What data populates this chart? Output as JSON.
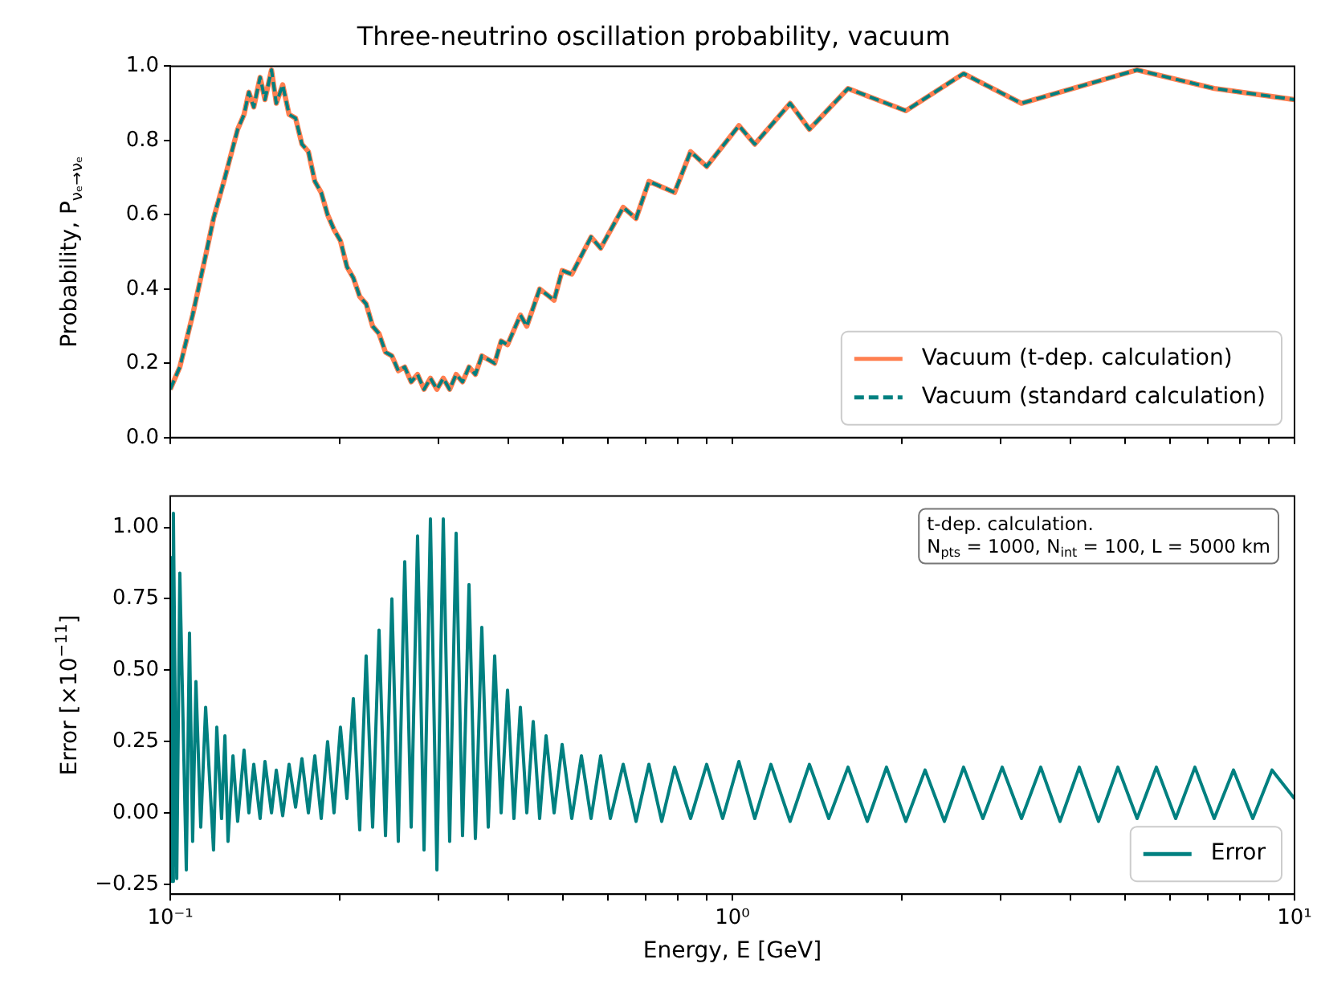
{
  "chart_data": [
    {
      "type": "line",
      "title": "Three-neutrino oscillation probability, vacuum",
      "ylabel": "Probability, P$_{νₑ→νₑ}$",
      "log": "x",
      "legend": "bottom right",
      "marker": "none",
      "tick_labels": "y",
      "xlim": [
        0.1,
        10
      ],
      "xticks": [
        {
          "value": 0.1,
          "label": null
        },
        {
          "value": 0.2,
          "label": null
        },
        {
          "value": 0.3,
          "label": null
        },
        {
          "value": 0.4,
          "label": null
        },
        {
          "value": 0.5,
          "label": null
        },
        {
          "value": 0.6,
          "label": null
        },
        {
          "value": 0.7,
          "label": null
        },
        {
          "value": 0.8,
          "label": null
        },
        {
          "value": 0.9,
          "label": null
        },
        {
          "value": 1,
          "label": null
        },
        {
          "value": 2,
          "label": null
        },
        {
          "value": 3,
          "label": null
        },
        {
          "value": 4,
          "label": null
        },
        {
          "value": 5,
          "label": null
        },
        {
          "value": 6,
          "label": null
        },
        {
          "value": 7,
          "label": null
        },
        {
          "value": 8,
          "label": null
        },
        {
          "value": 9,
          "label": null
        },
        {
          "value": 10,
          "label": null
        }
      ],
      "ylim": [
        0,
        1
      ],
      "yticks": [
        {
          "value": 0,
          "label": "0.0"
        },
        {
          "value": 0.2,
          "label": "0.2"
        },
        {
          "value": 0.4,
          "label": "0.4"
        },
        {
          "value": 0.6,
          "label": "0.6"
        },
        {
          "value": 0.8,
          "label": "0.8"
        },
        {
          "value": 1,
          "label": "1.0"
        }
      ],
      "x": [
        0.1,
        0.104,
        0.1096,
        0.1156,
        0.1194,
        0.1251,
        0.1318,
        0.1353,
        0.138,
        0.1408,
        0.1445,
        0.1474,
        0.1514,
        0.1544,
        0.1585,
        0.1627,
        0.1671,
        0.1715,
        0.1761,
        0.1808,
        0.1856,
        0.1905,
        0.1956,
        0.2008,
        0.2062,
        0.2117,
        0.2173,
        0.2231,
        0.2291,
        0.2352,
        0.2415,
        0.2479,
        0.2545,
        0.2613,
        0.2683,
        0.2754,
        0.2828,
        0.2903,
        0.2981,
        0.306,
        0.3141,
        0.3225,
        0.3311,
        0.34,
        0.349,
        0.3583,
        0.3777,
        0.3878,
        0.3981,
        0.4196,
        0.4308,
        0.4541,
        0.4818,
        0.4979,
        0.518,
        0.5605,
        0.5831,
        0.6394,
        0.674,
        0.7104,
        0.7892,
        0.8427,
        0.9,
        1.027,
        1.096,
        1.267,
        1.371,
        1.606,
        2.035,
        2.578,
        3.268,
        5.248,
        7.197,
        10
      ],
      "series": [
        {
          "name": "Vacuum (t-dep. calculation)",
          "color": "#ff7f50",
          "line_style": "solid",
          "values": [
            0.13,
            0.19,
            0.33,
            0.49,
            0.59,
            0.7,
            0.83,
            0.87,
            0.93,
            0.89,
            0.97,
            0.91,
            0.99,
            0.9,
            0.95,
            0.87,
            0.86,
            0.79,
            0.77,
            0.69,
            0.66,
            0.6,
            0.56,
            0.53,
            0.46,
            0.43,
            0.38,
            0.36,
            0.3,
            0.28,
            0.23,
            0.22,
            0.18,
            0.19,
            0.15,
            0.17,
            0.13,
            0.16,
            0.13,
            0.16,
            0.13,
            0.17,
            0.15,
            0.19,
            0.17,
            0.22,
            0.2,
            0.26,
            0.25,
            0.33,
            0.3,
            0.4,
            0.37,
            0.45,
            0.44,
            0.54,
            0.51,
            0.62,
            0.59,
            0.69,
            0.66,
            0.77,
            0.73,
            0.84,
            0.79,
            0.9,
            0.83,
            0.94,
            0.88,
            0.98,
            0.9,
            0.99,
            0.94,
            0.91
          ]
        },
        {
          "name": "Vacuum (standard calculation)",
          "color": "#008080",
          "line_style": "dashed",
          "values": [
            0.13,
            0.19,
            0.33,
            0.49,
            0.59,
            0.7,
            0.83,
            0.87,
            0.93,
            0.89,
            0.97,
            0.91,
            0.99,
            0.9,
            0.95,
            0.87,
            0.86,
            0.79,
            0.77,
            0.69,
            0.66,
            0.6,
            0.56,
            0.53,
            0.46,
            0.43,
            0.38,
            0.36,
            0.3,
            0.28,
            0.23,
            0.22,
            0.18,
            0.19,
            0.15,
            0.17,
            0.13,
            0.16,
            0.13,
            0.16,
            0.13,
            0.17,
            0.15,
            0.19,
            0.17,
            0.22,
            0.2,
            0.26,
            0.25,
            0.33,
            0.3,
            0.4,
            0.37,
            0.45,
            0.44,
            0.54,
            0.51,
            0.62,
            0.59,
            0.69,
            0.66,
            0.77,
            0.73,
            0.84,
            0.79,
            0.9,
            0.83,
            0.94,
            0.88,
            0.98,
            0.9,
            0.99,
            0.94,
            0.91
          ]
        }
      ]
    },
    {
      "type": "line",
      "xlabel": "Energy, E [GeV]",
      "ylabel": "Error [×10$^{−11}$]",
      "log": "x",
      "legend": "bottom right",
      "marker": "none",
      "annotations": [
        "t-dep. calculation.",
        "N$_{pts}$ = 1000, N$_{int}$ = 100, L = 5000 km"
      ],
      "xlim": [
        0.1,
        10
      ],
      "xticks": [
        {
          "value": 0.1,
          "label": "10⁻¹"
        },
        {
          "value": 0.2,
          "label": null
        },
        {
          "value": 0.3,
          "label": null
        },
        {
          "value": 0.4,
          "label": null
        },
        {
          "value": 0.5,
          "label": null
        },
        {
          "value": 0.6,
          "label": null
        },
        {
          "value": 0.7,
          "label": null
        },
        {
          "value": 0.8,
          "label": null
        },
        {
          "value": 0.9,
          "label": null
        },
        {
          "value": 1,
          "label": "10⁰"
        },
        {
          "value": 2,
          "label": null
        },
        {
          "value": 3,
          "label": null
        },
        {
          "value": 4,
          "label": null
        },
        {
          "value": 5,
          "label": null
        },
        {
          "value": 6,
          "label": null
        },
        {
          "value": 7,
          "label": null
        },
        {
          "value": 8,
          "label": null
        },
        {
          "value": 9,
          "label": null
        },
        {
          "value": 10,
          "label": "10¹"
        }
      ],
      "ylim": [
        -0.285,
        1.11
      ],
      "yticks": [
        {
          "value": -0.25,
          "label": "−0.25"
        },
        {
          "value": 0,
          "label": "0.00"
        },
        0.25,
        {
          "value": 0.5,
          "label": "0.50"
        },
        0.75,
        {
          "value": 1,
          "label": "1.00"
        }
      ],
      "x": [
        0.1,
        0.1007,
        0.1013,
        0.1027,
        0.104,
        0.1068,
        0.1082,
        0.1096,
        0.1111,
        0.1133,
        0.1156,
        0.1194,
        0.121,
        0.1234,
        0.1251,
        0.1267,
        0.1293,
        0.1318,
        0.1353,
        0.138,
        0.1408,
        0.1445,
        0.1474,
        0.1514,
        0.1544,
        0.1585,
        0.1627,
        0.1671,
        0.1715,
        0.1761,
        0.1808,
        0.1856,
        0.1905,
        0.1956,
        0.2008,
        0.2062,
        0.2117,
        0.2173,
        0.2231,
        0.2291,
        0.2352,
        0.2415,
        0.2479,
        0.2545,
        0.2613,
        0.2683,
        0.2754,
        0.2828,
        0.2903,
        0.2981,
        0.306,
        0.3141,
        0.3225,
        0.3311,
        0.34,
        0.349,
        0.3583,
        0.3679,
        0.3777,
        0.3878,
        0.3981,
        0.4087,
        0.4196,
        0.4308,
        0.4423,
        0.4541,
        0.4662,
        0.4818,
        0.4979,
        0.518,
        0.5388,
        0.5605,
        0.5831,
        0.6066,
        0.6394,
        0.674,
        0.7104,
        0.7487,
        0.7892,
        0.8427,
        0.9,
        0.961,
        1.027,
        1.096,
        1.171,
        1.267,
        1.371,
        1.484,
        1.606,
        1.738,
        1.88,
        2.035,
        2.202,
        2.383,
        2.578,
        2.79,
        3.02,
        3.268,
        3.536,
        3.827,
        4.141,
        4.481,
        4.85,
        5.248,
        5.679,
        6.146,
        6.65,
        7.197,
        7.788,
        8.428,
        9.12,
        10
      ],
      "series": [
        {
          "name": "Error",
          "color": "#008080",
          "line_style": "solid",
          "values": [
            0.9,
            -0.24,
            1.05,
            -0.23,
            0.84,
            -0.2,
            0.63,
            -0.1,
            0.46,
            -0.05,
            0.37,
            -0.13,
            0.3,
            -0.02,
            0.27,
            -0.1,
            0.2,
            -0.03,
            0.22,
            0,
            0.17,
            -0.02,
            0.18,
            0,
            0.15,
            -0.01,
            0.17,
            0.02,
            0.19,
            0,
            0.2,
            -0.02,
            0.25,
            0,
            0.3,
            0.05,
            0.4,
            -0.06,
            0.55,
            -0.05,
            0.64,
            -0.08,
            0.75,
            -0.1,
            0.88,
            -0.05,
            0.97,
            -0.13,
            1.03,
            -0.2,
            1.03,
            -0.1,
            0.98,
            -0.08,
            0.8,
            -0.09,
            0.65,
            -0.05,
            0.55,
            0,
            0.43,
            -0.02,
            0.37,
            0,
            0.32,
            -0.02,
            0.27,
            0,
            0.24,
            -0.02,
            0.2,
            -0.02,
            0.2,
            -0.02,
            0.17,
            -0.03,
            0.17,
            -0.03,
            0.16,
            -0.02,
            0.17,
            -0.02,
            0.18,
            -0.02,
            0.17,
            -0.03,
            0.17,
            -0.02,
            0.16,
            -0.03,
            0.16,
            -0.03,
            0.15,
            -0.03,
            0.16,
            -0.02,
            0.16,
            -0.02,
            0.16,
            -0.03,
            0.16,
            -0.03,
            0.16,
            -0.02,
            0.16,
            -0.02,
            0.16,
            -0.02,
            0.15,
            -0.02,
            0.15,
            0.05
          ]
        }
      ]
    }
  ]
}
